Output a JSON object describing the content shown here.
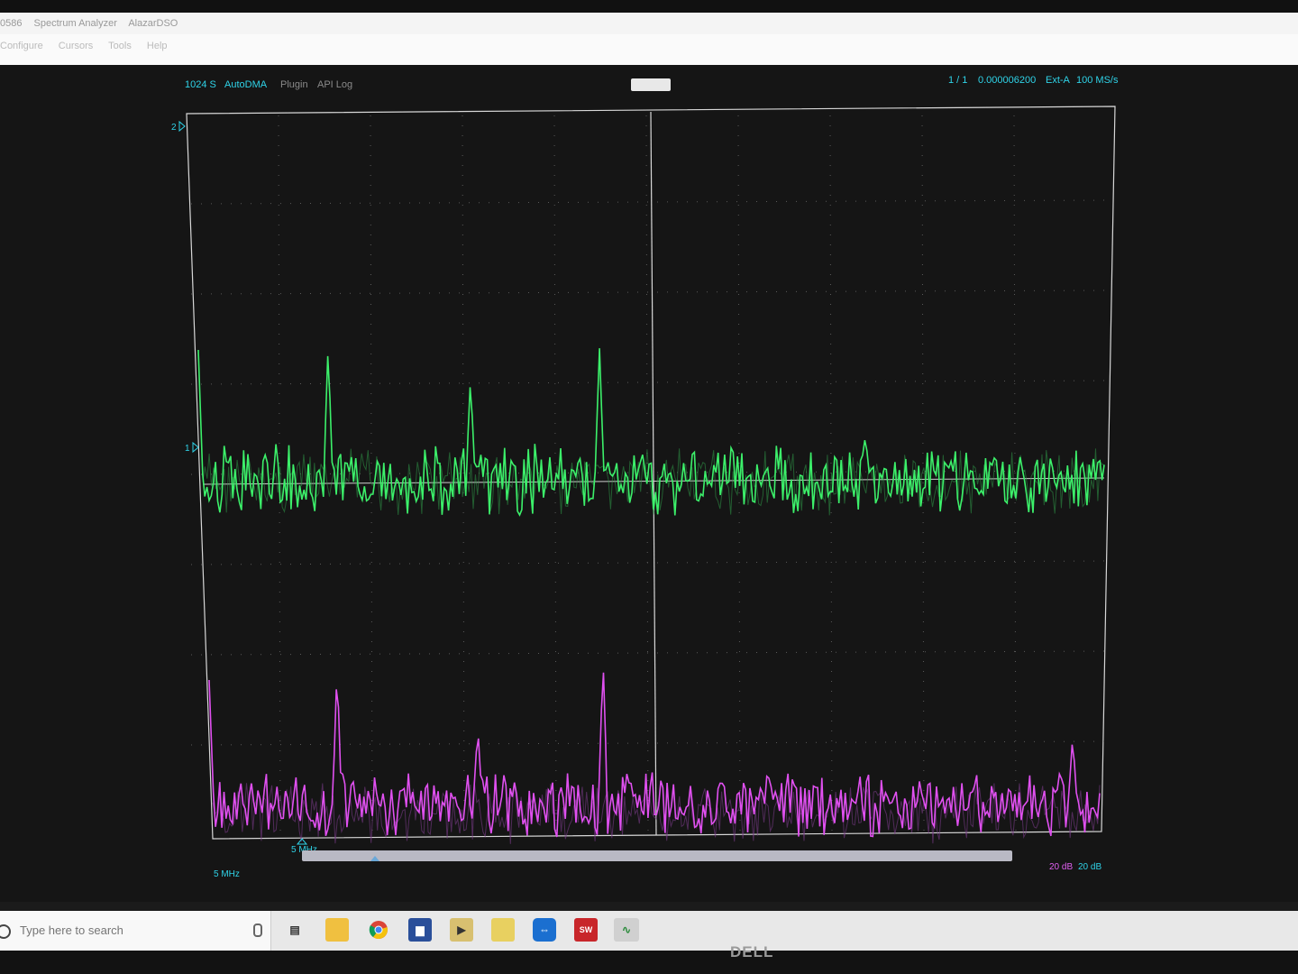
{
  "window": {
    "title_parts": [
      "0586",
      "Spectrum Analyzer",
      "AlazarDSO"
    ],
    "menu": [
      "Configure",
      "Cursors",
      "Tools",
      "Help"
    ]
  },
  "header": {
    "samples": "1024 S",
    "mode": "AutoDMA",
    "plugin": "Plugin",
    "api_log": "API Log",
    "record": "1 / 1",
    "time": "0.000006200",
    "trigger": "Ext-A",
    "rate": "100 MS/s"
  },
  "markers": {
    "ch2": "2",
    "ch1": "1"
  },
  "footer": {
    "freq_cursor": "5 MHz",
    "freq_left": "5 MHz",
    "db_magenta": "20 dB",
    "db_cyan": "20 dB"
  },
  "taskbar": {
    "search_placeholder": "Type here to search",
    "icons": [
      "task-view",
      "file-explorer",
      "chrome",
      "app",
      "media-player",
      "gallery",
      "teamviewer",
      "solidworks",
      "scope"
    ],
    "solidworks_label": "SW"
  },
  "brand": {
    "logo": "DELL"
  },
  "colors": {
    "trace_green": "#3cf06a",
    "trace_magenta": "#e050f0",
    "accent_cyan": "#2fd3e8",
    "grid": "#d8d8d8"
  },
  "chart_data": [
    {
      "type": "line",
      "series": [
        {
          "name": "1",
          "color": "#3cf06a"
        },
        {
          "name": "2",
          "color": "#e050f0"
        }
      ],
      "x_start": "5 MHz",
      "scale": [
        "20 dB",
        "20 dB"
      ],
      "grid": true
    }
  ]
}
